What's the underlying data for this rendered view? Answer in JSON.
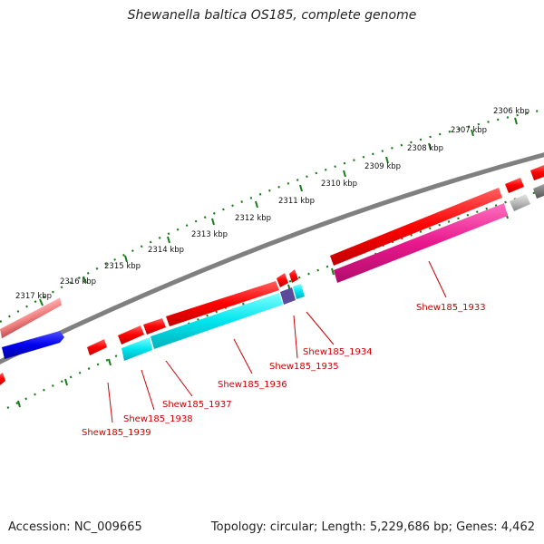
{
  "title": "Shewanella baltica OS185, complete genome",
  "footer": {
    "accession": "Accession: NC_009665",
    "summary": "Topology: circular; Length: 5,229,686 bp; Genes: 4,462"
  },
  "scale_labels": [
    "2306 kbp",
    "2307 kbp",
    "2308 kbp",
    "2309 kbp",
    "2310 kbp",
    "2311 kbp",
    "2312 kbp",
    "2313 kbp",
    "2314 kbp",
    "2315 kbp",
    "2316 kbp",
    "2317 kbp"
  ],
  "gene_labels": [
    "Shew185_1933",
    "Shew185_1934",
    "Shew185_1935",
    "Shew185_1936",
    "Shew185_1937",
    "Shew185_1938",
    "Shew185_1939"
  ],
  "colors": {
    "backbone": "#808080",
    "tick": "#1a7a1a",
    "gene_red": "#ff0000",
    "gene_cyan": "#00e5ee",
    "gene_magenta": "#e8188c",
    "gene_blue": "#0000ee",
    "gene_pink": "#f08080",
    "gene_gray": "#bbbbbb",
    "gene_purple": "#5a4a9a",
    "label": "#cc0000"
  }
}
